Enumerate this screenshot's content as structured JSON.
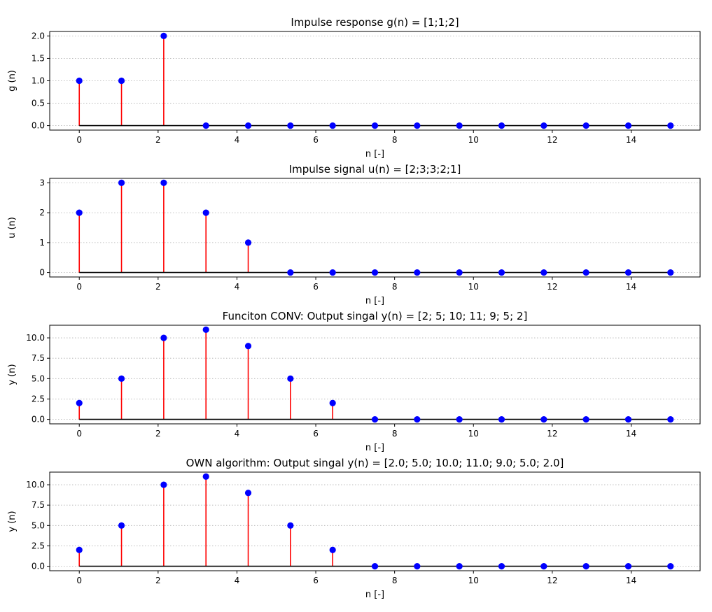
{
  "colors": {
    "stem": "#ff0000",
    "marker": "#0000ff",
    "baseline": "#000000",
    "grid": "#b0b0b0",
    "axes": "#000000",
    "background": "#ffffff"
  },
  "chart_data": [
    {
      "type": "stem",
      "title": "Impulse response g(n) = [1;1;2]",
      "xlabel": "n [-]",
      "ylabel": "g (n)",
      "x": [
        0,
        1.0714,
        2.1429,
        3.2143,
        4.2857,
        5.3571,
        6.4286,
        7.5,
        8.5714,
        9.6429,
        10.7143,
        11.7857,
        12.8571,
        13.9286,
        15
      ],
      "values": [
        1,
        1,
        2,
        0,
        0,
        0,
        0,
        0,
        0,
        0,
        0,
        0,
        0,
        0,
        0
      ],
      "xlim": [
        -0.75,
        15.75
      ],
      "ylim": [
        -0.1,
        2.1
      ],
      "xticks": [
        0,
        2,
        4,
        6,
        8,
        10,
        12,
        14
      ],
      "xticklabels": [
        "0",
        "2",
        "4",
        "6",
        "8",
        "10",
        "12",
        "14"
      ],
      "yticks": [
        0,
        0.5,
        1,
        1.5,
        2
      ],
      "yticklabels": [
        "0.0",
        "0.5",
        "1.0",
        "1.5",
        "2.0"
      ],
      "grid": "y-dotted"
    },
    {
      "type": "stem",
      "title": "Impulse signal u(n) = [2;3;3;2;1]",
      "xlabel": "n [-]",
      "ylabel": "u (n)",
      "x": [
        0,
        1.0714,
        2.1429,
        3.2143,
        4.2857,
        5.3571,
        6.4286,
        7.5,
        8.5714,
        9.6429,
        10.7143,
        11.7857,
        12.8571,
        13.9286,
        15
      ],
      "values": [
        2,
        3,
        3,
        2,
        1,
        0,
        0,
        0,
        0,
        0,
        0,
        0,
        0,
        0,
        0
      ],
      "xlim": [
        -0.75,
        15.75
      ],
      "ylim": [
        -0.15,
        3.15
      ],
      "xticks": [
        0,
        2,
        4,
        6,
        8,
        10,
        12,
        14
      ],
      "xticklabels": [
        "0",
        "2",
        "4",
        "6",
        "8",
        "10",
        "12",
        "14"
      ],
      "yticks": [
        0,
        1,
        2,
        3
      ],
      "yticklabels": [
        "0",
        "1",
        "2",
        "3"
      ],
      "grid": "y-dotted"
    },
    {
      "type": "stem",
      "title": "Funciton CONV: Output singal y(n) = [2; 5; 10; 11; 9; 5; 2]",
      "xlabel": "n [-]",
      "ylabel": "y (n)",
      "x": [
        0,
        1.0714,
        2.1429,
        3.2143,
        4.2857,
        5.3571,
        6.4286,
        7.5,
        8.5714,
        9.6429,
        10.7143,
        11.7857,
        12.8571,
        13.9286,
        15
      ],
      "values": [
        2,
        5,
        10,
        11,
        9,
        5,
        2,
        0,
        0,
        0,
        0,
        0,
        0,
        0,
        0
      ],
      "xlim": [
        -0.75,
        15.75
      ],
      "ylim": [
        -0.55,
        11.55
      ],
      "xticks": [
        0,
        2,
        4,
        6,
        8,
        10,
        12,
        14
      ],
      "xticklabels": [
        "0",
        "2",
        "4",
        "6",
        "8",
        "10",
        "12",
        "14"
      ],
      "yticks": [
        0,
        2.5,
        5,
        7.5,
        10
      ],
      "yticklabels": [
        "0.0",
        "2.5",
        "5.0",
        "7.5",
        "10.0"
      ],
      "grid": "y-dotted"
    },
    {
      "type": "stem",
      "title": "OWN algorithm: Output singal y(n) = [2.0; 5.0; 10.0; 11.0; 9.0; 5.0; 2.0]",
      "xlabel": "n [-]",
      "ylabel": "y (n)",
      "x": [
        0,
        1.0714,
        2.1429,
        3.2143,
        4.2857,
        5.3571,
        6.4286,
        7.5,
        8.5714,
        9.6429,
        10.7143,
        11.7857,
        12.8571,
        13.9286,
        15
      ],
      "values": [
        2,
        5,
        10,
        11,
        9,
        5,
        2,
        0,
        0,
        0,
        0,
        0,
        0,
        0,
        0
      ],
      "xlim": [
        -0.75,
        15.75
      ],
      "ylim": [
        -0.55,
        11.55
      ],
      "xticks": [
        0,
        2,
        4,
        6,
        8,
        10,
        12,
        14
      ],
      "xticklabels": [
        "0",
        "2",
        "4",
        "6",
        "8",
        "10",
        "12",
        "14"
      ],
      "yticks": [
        0,
        2.5,
        5,
        7.5,
        10
      ],
      "yticklabels": [
        "0.0",
        "2.5",
        "5.0",
        "7.5",
        "10.0"
      ],
      "grid": "y-dotted"
    }
  ]
}
